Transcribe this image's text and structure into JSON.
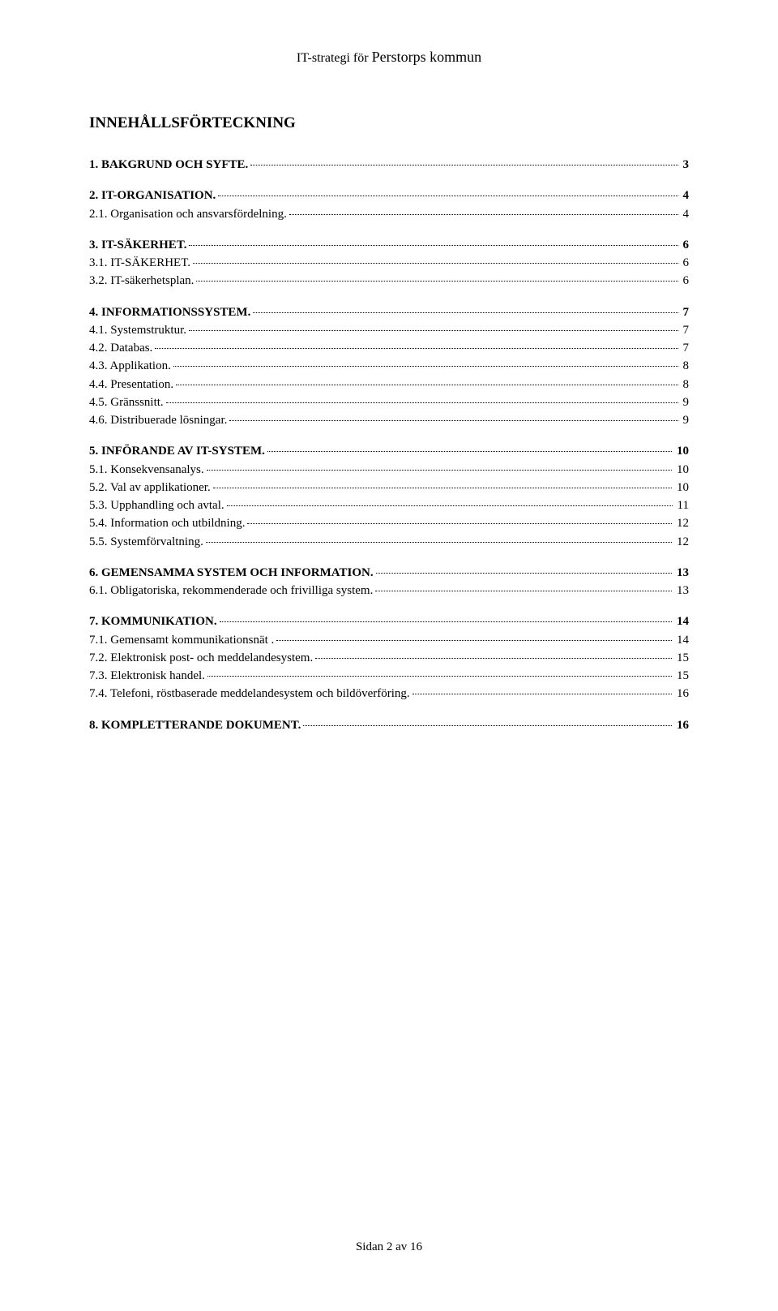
{
  "header": {
    "prefix": "IT-strategi för ",
    "suffix": "Perstorps kommun"
  },
  "toc_title": "INNEHÅLLSFÖRTECKNING",
  "toc": [
    {
      "level": 1,
      "label": "1. BAKGRUND OCH SYFTE.",
      "page": "3"
    },
    {
      "level": 1,
      "label": "2. IT-ORGANISATION.",
      "page": "4"
    },
    {
      "level": 2,
      "label": "2.1. Organisation och ansvarsfördelning.",
      "page": "4"
    },
    {
      "level": 1,
      "label": "3. IT-SÄKERHET.",
      "page": "6"
    },
    {
      "level": 2,
      "label": "3.1. IT-SÄKERHET.",
      "page": "6",
      "smallcaps": true
    },
    {
      "level": 2,
      "label": "3.2. IT-säkerhetsplan.",
      "page": "6"
    },
    {
      "level": 1,
      "label": "4. INFORMATIONSSYSTEM.",
      "page": "7"
    },
    {
      "level": 2,
      "label": "4.1. Systemstruktur.",
      "page": "7"
    },
    {
      "level": 2,
      "label": "4.2. Databas.",
      "page": "7"
    },
    {
      "level": 2,
      "label": "4.3. Applikation.",
      "page": "8"
    },
    {
      "level": 2,
      "label": "4.4. Presentation.",
      "page": "8"
    },
    {
      "level": 2,
      "label": "4.5. Gränssnitt.",
      "page": "9"
    },
    {
      "level": 2,
      "label": "4.6. Distribuerade lösningar.",
      "page": "9"
    },
    {
      "level": 1,
      "label": "5. INFÖRANDE AV IT-SYSTEM.",
      "page": "10"
    },
    {
      "level": 2,
      "label": "5.1. Konsekvensanalys.",
      "page": "10"
    },
    {
      "level": 2,
      "label": "5.2. Val av applikationer.",
      "page": "10"
    },
    {
      "level": 2,
      "label": "5.3. Upphandling och avtal.",
      "page": "11"
    },
    {
      "level": 2,
      "label": "5.4. Information och utbildning.",
      "page": "12"
    },
    {
      "level": 2,
      "label": "5.5. Systemförvaltning.",
      "page": "12"
    },
    {
      "level": 1,
      "label": "6. GEMENSAMMA SYSTEM OCH INFORMATION.",
      "page": "13"
    },
    {
      "level": 2,
      "label": "6.1. Obligatoriska, rekommenderade och frivilliga system.",
      "page": "13"
    },
    {
      "level": 1,
      "label": "7. KOMMUNIKATION.",
      "page": "14"
    },
    {
      "level": 2,
      "label": "7.1. Gemensamt kommunikationsnät .",
      "page": "14"
    },
    {
      "level": 2,
      "label": "7.2. Elektronisk post- och meddelandesystem.",
      "page": "15"
    },
    {
      "level": 2,
      "label": "7.3. Elektronisk handel.",
      "page": "15"
    },
    {
      "level": 2,
      "label": "7.4. Telefoni, röstbaserade meddelandesystem och bildöverföring.",
      "page": "16"
    },
    {
      "level": 1,
      "label": "8. KOMPLETTERANDE DOKUMENT.",
      "page": "16"
    }
  ],
  "footer": "Sidan 2 av 16",
  "style": {
    "font_family": "Times New Roman",
    "text_color": "#000000",
    "background_color": "#ffffff",
    "title_fontsize_pt": 14,
    "level1_fontsize_pt": 11,
    "level2_fontsize_pt": 11,
    "footer_fontsize_pt": 11,
    "leader_style": "dotted"
  }
}
